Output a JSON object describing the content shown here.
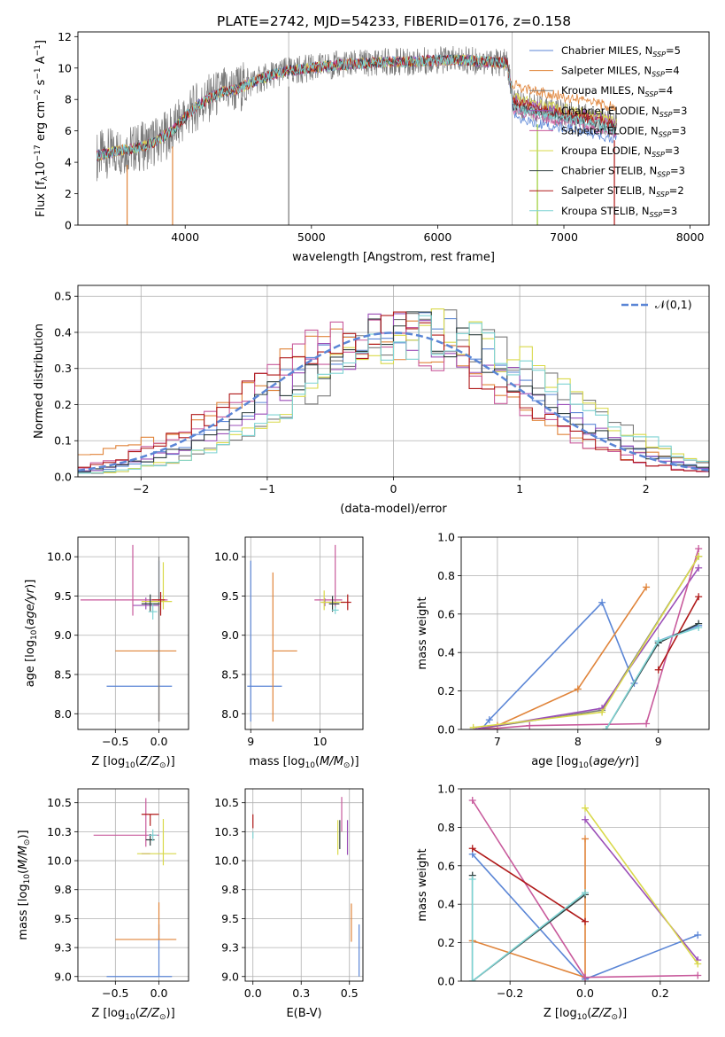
{
  "title": "PLATE=2742, MJD=54233, FIBERID=0176, z=0.158",
  "colors": {
    "chabrier_miles": "#5b86d6",
    "salpeter_miles": "#e0843a",
    "kroupa_miles": "#7a7a7a",
    "chabrier_elodie": "#9b4fb8",
    "salpeter_elodie": "#c85a9c",
    "kroupa_elodie": "#d9d94a",
    "chabrier_stelib": "#2f3f3f",
    "salpeter_stelib": "#b01a1a",
    "kroupa_stelib": "#7fd3d3",
    "normal_curve": "#5b86d6"
  },
  "chart_data": [
    {
      "id": "spectrum",
      "type": "line",
      "xlabel": "wavelength [Angstrom, rest frame]",
      "ylabel": "Flux [f_λ 10^-17 erg cm^-2 s^-1 A^-1]",
      "xlim": [
        3150,
        8150
      ],
      "ylim": [
        0,
        12.3
      ],
      "xticks": [
        4000,
        5000,
        6000,
        7000,
        8000
      ],
      "yticks": [
        0,
        2,
        4,
        6,
        8,
        10,
        12
      ],
      "grid": false,
      "legend_position": "top-right",
      "legend": [
        {
          "label": "Chabrier MILES, N_SSP=5",
          "color": "#5b86d6"
        },
        {
          "label": "Salpeter MILES, N_SSP=4",
          "color": "#e0843a"
        },
        {
          "label": "Kroupa MILES, N_SSP=4",
          "color": "#7a7a7a"
        },
        {
          "label": "Chabrier ELODIE, N_SSP=3",
          "color": "#9b4fb8"
        },
        {
          "label": "Salpeter ELODIE, N_SSP=3",
          "color": "#c85a9c"
        },
        {
          "label": "Kroupa ELODIE, N_SSP=3",
          "color": "#d9d94a"
        },
        {
          "label": "Chabrier STELIB, N_SSP=3",
          "color": "#2f3f3f"
        },
        {
          "label": "Salpeter STELIB, N_SSP=2",
          "color": "#b01a1a"
        },
        {
          "label": "Kroupa STELIB, N_SSP=3",
          "color": "#7fd3d3"
        }
      ],
      "envelope": {
        "x": [
          3300,
          3400,
          3500,
          3600,
          3700,
          3800,
          3900,
          4000,
          4100,
          4200,
          4300,
          4400,
          4500,
          4600,
          4700,
          4800,
          4900,
          5000,
          5200,
          5400,
          5600,
          5800,
          6000,
          6200,
          6400,
          6550,
          6600,
          6800,
          7000,
          7200,
          7400
        ],
        "y": [
          4.4,
          4.6,
          4.8,
          4.9,
          5.1,
          5.5,
          6.0,
          6.9,
          7.6,
          8.1,
          8.5,
          8.6,
          9.0,
          9.3,
          9.6,
          9.8,
          9.9,
          10.0,
          10.2,
          10.3,
          10.4,
          10.4,
          10.5,
          10.5,
          10.4,
          10.3,
          7.8,
          7.4,
          7.1,
          6.8,
          6.4
        ]
      },
      "series_offsets": [
        {
          "name": "Chabrier MILES, N_SSP=5",
          "color": "#5b86d6",
          "red_offset": -0.9
        },
        {
          "name": "Salpeter MILES, N_SSP=4",
          "color": "#e0843a",
          "red_offset": 1.1
        },
        {
          "name": "Kroupa MILES, N_SSP=4",
          "color": "#7a7a7a",
          "red_offset": 0.0
        },
        {
          "name": "Chabrier ELODIE, N_SSP=3",
          "color": "#9b4fb8",
          "red_offset": 0.2
        },
        {
          "name": "Salpeter ELODIE, N_SSP=3",
          "color": "#c85a9c",
          "red_offset": -0.5
        },
        {
          "name": "Kroupa ELODIE, N_SSP=3",
          "color": "#d9d94a",
          "red_offset": 0.3
        },
        {
          "name": "Chabrier STELIB, N_SSP=3",
          "color": "#2f3f3f",
          "red_offset": -0.2
        },
        {
          "name": "Salpeter STELIB, N_SSP=2",
          "color": "#b01a1a",
          "red_offset": 0.0
        },
        {
          "name": "Kroupa STELIB, N_SSP=3",
          "color": "#7fd3d3",
          "red_offset": -0.3
        }
      ],
      "vertical_lines_x": [
        4820,
        6590
      ]
    },
    {
      "id": "residuals",
      "type": "histogram",
      "xlabel": "(data-model)/error",
      "ylabel": "Normed distribution",
      "xlim": [
        -2.5,
        2.5
      ],
      "ylim": [
        0,
        0.53
      ],
      "xticks": [
        -2,
        -1,
        0,
        1,
        2
      ],
      "yticks": [
        0.0,
        0.1,
        0.2,
        0.3,
        0.4,
        0.5
      ],
      "grid": true,
      "legend": "𝒩(0,1)",
      "legend_position": "top-right",
      "bin_width": 0.1,
      "normal": {
        "mean": 0,
        "sigma": 1
      }
    },
    {
      "id": "z_age",
      "type": "scatter",
      "xlabel": "Z [log10(Z/Z☉)]",
      "ylabel": "age [log10(age/yr)]",
      "xlim": [
        -0.93,
        0.34
      ],
      "ylim": [
        7.8,
        10.25
      ],
      "xticks": [
        -0.5,
        0.0
      ],
      "yticks": [
        8.0,
        8.5,
        9.0,
        9.5,
        10.0
      ],
      "grid": true,
      "points": [
        {
          "color": "#5b86d6",
          "x": 0.0,
          "xerr": [
            0.6,
            0.15
          ],
          "y": 8.35,
          "yerr": [
            0.45,
            1.6
          ]
        },
        {
          "color": "#e0843a",
          "x": 0.0,
          "xerr": [
            0.5,
            0.2
          ],
          "y": 8.8,
          "yerr": [
            0.9,
            0.6
          ]
        },
        {
          "color": "#7a7a7a",
          "x": 0.0,
          "xerr": [
            0.02,
            0.02
          ],
          "y": 9.4,
          "yerr": [
            1.5,
            0.6
          ]
        },
        {
          "color": "#9b4fb8",
          "x": -0.15,
          "xerr": [
            0.15,
            0.15
          ],
          "y": 9.38,
          "yerr": [
            0.05,
            0.1
          ]
        },
        {
          "color": "#c85a9c",
          "x": -0.3,
          "xerr": [
            0.6,
            0.4
          ],
          "y": 9.45,
          "yerr": [
            0.2,
            0.7
          ]
        },
        {
          "color": "#d9d94a",
          "x": 0.05,
          "xerr": [
            0.25,
            0.1
          ],
          "y": 9.43,
          "yerr": [
            0.1,
            0.5
          ]
        },
        {
          "color": "#2f3f3f",
          "x": -0.1,
          "xerr": [
            0.1,
            0.1
          ],
          "y": 9.4,
          "yerr": [
            0.1,
            0.12
          ]
        },
        {
          "color": "#b01a1a",
          "x": 0.02,
          "xerr": [
            0.1,
            0.05
          ],
          "y": 9.45,
          "yerr": [
            0.2,
            0.1
          ]
        },
        {
          "color": "#7fd3d3",
          "x": -0.07,
          "xerr": [
            0.05,
            0.05
          ],
          "y": 9.3,
          "yerr": [
            0.1,
            0.1
          ]
        }
      ]
    },
    {
      "id": "mass_age",
      "type": "scatter",
      "xlabel": "mass [log10(M/M☉)]",
      "ylabel": "",
      "xlim": [
        8.92,
        10.62
      ],
      "ylim": [
        7.8,
        10.25
      ],
      "xticks": [
        9,
        10
      ],
      "yticks": [
        8.0,
        8.5,
        9.0,
        9.5,
        10.0
      ],
      "grid": true,
      "points": [
        {
          "color": "#5b86d6",
          "x": 9.0,
          "xerr": [
            0.05,
            0.45
          ],
          "y": 8.35,
          "yerr": [
            0.45,
            1.6
          ]
        },
        {
          "color": "#e0843a",
          "x": 9.32,
          "xerr": [
            0.0,
            0.35
          ],
          "y": 8.8,
          "yerr": [
            0.9,
            1.0
          ]
        },
        {
          "color": "#9b4fb8",
          "x": 10.07,
          "xerr": [
            0.05,
            0.2
          ],
          "y": 9.42,
          "yerr": [
            0.05,
            0.05
          ]
        },
        {
          "color": "#c85a9c",
          "x": 10.22,
          "xerr": [
            0.3,
            0.1
          ],
          "y": 9.45,
          "yerr": [
            0.1,
            0.7
          ]
        },
        {
          "color": "#d9d94a",
          "x": 10.06,
          "xerr": [
            0.05,
            0.3
          ],
          "y": 9.42,
          "yerr": [
            0.1,
            0.15
          ]
        },
        {
          "color": "#2f3f3f",
          "x": 10.18,
          "xerr": [
            0.05,
            0.1
          ],
          "y": 9.4,
          "yerr": [
            0.1,
            0.1
          ]
        },
        {
          "color": "#b01a1a",
          "x": 10.4,
          "xerr": [
            0.1,
            0.05
          ],
          "y": 9.42,
          "yerr": [
            0.1,
            0.1
          ]
        },
        {
          "color": "#7fd3d3",
          "x": 10.22,
          "xerr": [
            0.05,
            0.05
          ],
          "y": 9.32,
          "yerr": [
            0.05,
            0.05
          ]
        }
      ]
    },
    {
      "id": "age_weight",
      "type": "line",
      "xlabel": "age [log10(age/yr)]",
      "ylabel": "mass weight",
      "xlim": [
        6.55,
        9.63
      ],
      "ylim": [
        0,
        1.0
      ],
      "xticks": [
        7,
        8,
        9
      ],
      "yticks": [
        0.0,
        0.2,
        0.4,
        0.6,
        0.8,
        1.0
      ],
      "grid": true,
      "series": [
        {
          "name": "Chabrier MILES",
          "color": "#5b86d6",
          "x": [
            6.8,
            6.9,
            8.3,
            8.7,
            9.0,
            9.5
          ],
          "y": [
            0.0,
            0.05,
            0.66,
            0.24,
            0.46,
            0.54
          ]
        },
        {
          "name": "Salpeter MILES",
          "color": "#e0843a",
          "x": [
            6.8,
            7.0,
            8.0,
            8.85
          ],
          "y": [
            0.0,
            0.02,
            0.21,
            0.74
          ]
        },
        {
          "name": "Kroupa MILES",
          "color": "#7a7a7a",
          "x": [
            6.7,
            8.3,
            9.5
          ],
          "y": [
            0.0,
            0.1,
            0.9
          ]
        },
        {
          "name": "Chabrier ELODIE",
          "color": "#9b4fb8",
          "x": [
            6.7,
            8.3,
            9.5
          ],
          "y": [
            0.0,
            0.11,
            0.84
          ]
        },
        {
          "name": "Salpeter ELODIE",
          "color": "#c85a9c",
          "x": [
            6.8,
            7.4,
            8.85,
            9.5
          ],
          "y": [
            0.0,
            0.02,
            0.03,
            0.94
          ]
        },
        {
          "name": "Kroupa ELODIE",
          "color": "#d9d94a",
          "x": [
            6.7,
            8.3,
            9.5
          ],
          "y": [
            0.01,
            0.09,
            0.9
          ]
        },
        {
          "name": "Chabrier STELIB",
          "color": "#2f3f3f",
          "x": [
            8.35,
            9.0,
            9.5
          ],
          "y": [
            0.0,
            0.45,
            0.55
          ]
        },
        {
          "name": "Salpeter STELIB",
          "color": "#b01a1a",
          "x": [
            9.0,
            9.5
          ],
          "y": [
            0.31,
            0.69
          ]
        },
        {
          "name": "Kroupa STELIB",
          "color": "#7fd3d3",
          "x": [
            8.35,
            9.0,
            9.5
          ],
          "y": [
            0.0,
            0.46,
            0.53
          ]
        }
      ]
    },
    {
      "id": "z_mass",
      "type": "scatter",
      "xlabel": "Z [log10(Z/Z☉)]",
      "ylabel": "mass [log10(M/M☉)]",
      "xlim": [
        -0.93,
        0.34
      ],
      "ylim": [
        8.96,
        10.62
      ],
      "xticks": [
        -0.5,
        0.0
      ],
      "yticks": [
        9.0,
        9.25,
        9.5,
        9.75,
        10.0,
        10.25,
        10.5
      ],
      "grid": true,
      "points": [
        {
          "color": "#5b86d6",
          "x": 0.0,
          "xerr": [
            0.6,
            0.15
          ],
          "y": 9.0,
          "yerr": [
            0.0,
            0.45
          ]
        },
        {
          "color": "#e0843a",
          "x": 0.0,
          "xerr": [
            0.5,
            0.2
          ],
          "y": 9.32,
          "yerr": [
            0.0,
            0.32
          ]
        },
        {
          "color": "#9b4fb8",
          "x": -0.1,
          "xerr": [
            0.1,
            0.0
          ],
          "y": 10.06,
          "yerr": [
            0.0,
            0.0
          ]
        },
        {
          "color": "#c85a9c",
          "x": -0.15,
          "xerr": [
            0.6,
            0.15
          ],
          "y": 10.22,
          "yerr": [
            0.1,
            0.32
          ]
        },
        {
          "color": "#d9d94a",
          "x": 0.05,
          "xerr": [
            0.3,
            0.15
          ],
          "y": 10.06,
          "yerr": [
            0.1,
            0.3
          ]
        },
        {
          "color": "#2f3f3f",
          "x": -0.1,
          "xerr": [
            0.05,
            0.05
          ],
          "y": 10.18,
          "yerr": [
            0.05,
            0.05
          ]
        },
        {
          "color": "#b01a1a",
          "x": -0.1,
          "xerr": [
            0.1,
            0.1
          ],
          "y": 10.4,
          "yerr": [
            0.1,
            0.0
          ]
        },
        {
          "color": "#7fd3d3",
          "x": -0.07,
          "xerr": [
            0.05,
            0.05
          ],
          "y": 10.22,
          "yerr": [
            0.05,
            0.05
          ]
        }
      ]
    },
    {
      "id": "ebv_mass",
      "type": "scatter",
      "xlabel": "E(B-V)",
      "ylabel": "",
      "xlim": [
        -0.04,
        0.57
      ],
      "ylim": [
        8.96,
        10.62
      ],
      "xticks": [
        0.0,
        0.25,
        0.5
      ],
      "yticks": [
        9.0,
        9.25,
        9.5,
        9.75,
        10.0,
        10.25,
        10.5
      ],
      "grid": true,
      "points": [
        {
          "color": "#5b86d6",
          "x": 0.55,
          "y": 9.2,
          "yerr": [
            0.2,
            0.25
          ]
        },
        {
          "color": "#e0843a",
          "x": 0.51,
          "y": 9.45,
          "yerr": [
            0.15,
            0.18
          ]
        },
        {
          "color": "#9b4fb8",
          "x": 0.49,
          "y": 10.2,
          "yerr": [
            0.15,
            0.15
          ]
        },
        {
          "color": "#c85a9c",
          "x": 0.46,
          "y": 10.35,
          "yerr": [
            0.1,
            0.2
          ]
        },
        {
          "color": "#d9d94a",
          "x": 0.44,
          "y": 10.15,
          "yerr": [
            0.1,
            0.2
          ]
        },
        {
          "color": "#2f3f3f",
          "x": 0.45,
          "y": 10.2,
          "yerr": [
            0.1,
            0.15
          ]
        },
        {
          "color": "#b01a1a",
          "x": 0.0,
          "y": 10.33,
          "yerr": [
            0.05,
            0.07
          ]
        },
        {
          "color": "#7fd3d3",
          "x": 0.0,
          "y": 10.22,
          "yerr": [
            0.03,
            0.03
          ]
        }
      ]
    },
    {
      "id": "z_weight",
      "type": "line",
      "xlabel": "Z [log10(Z/Z☉)]",
      "ylabel": "mass weight",
      "xlim": [
        -0.33,
        0.33
      ],
      "ylim": [
        0,
        1.0
      ],
      "xticks": [
        -0.2,
        0.0,
        0.2
      ],
      "yticks": [
        0.0,
        0.2,
        0.4,
        0.6,
        0.8,
        1.0
      ],
      "grid": true,
      "series": [
        {
          "name": "Chabrier MILES",
          "color": "#5b86d6",
          "x": [
            -0.3,
            0.0,
            0.3
          ],
          "y": [
            0.66,
            0.01,
            0.24
          ]
        },
        {
          "name": "Salpeter MILES",
          "color": "#e0843a",
          "x": [
            -0.3,
            0.0,
            0.0
          ],
          "y": [
            0.21,
            0.02,
            0.74
          ]
        },
        {
          "name": "Chabrier ELODIE",
          "color": "#9b4fb8",
          "x": [
            0.0,
            0.3
          ],
          "y": [
            0.84,
            0.11
          ]
        },
        {
          "name": "Salpeter ELODIE",
          "color": "#c85a9c",
          "x": [
            -0.3,
            0.0,
            0.3
          ],
          "y": [
            0.94,
            0.02,
            0.03
          ]
        },
        {
          "name": "Kroupa ELODIE",
          "color": "#d9d94a",
          "x": [
            0.0,
            0.3
          ],
          "y": [
            0.9,
            0.09
          ]
        },
        {
          "name": "Chabrier STELIB",
          "color": "#2f3f3f",
          "x": [
            -0.3,
            -0.3,
            0.0
          ],
          "y": [
            0.55,
            0.0,
            0.45
          ]
        },
        {
          "name": "Salpeter STELIB",
          "color": "#b01a1a",
          "x": [
            -0.3,
            0.0
          ],
          "y": [
            0.69,
            0.31
          ]
        },
        {
          "name": "Kroupa STELIB",
          "color": "#7fd3d3",
          "x": [
            -0.3,
            -0.3,
            0.0
          ],
          "y": [
            0.53,
            0.0,
            0.46
          ]
        }
      ]
    }
  ]
}
